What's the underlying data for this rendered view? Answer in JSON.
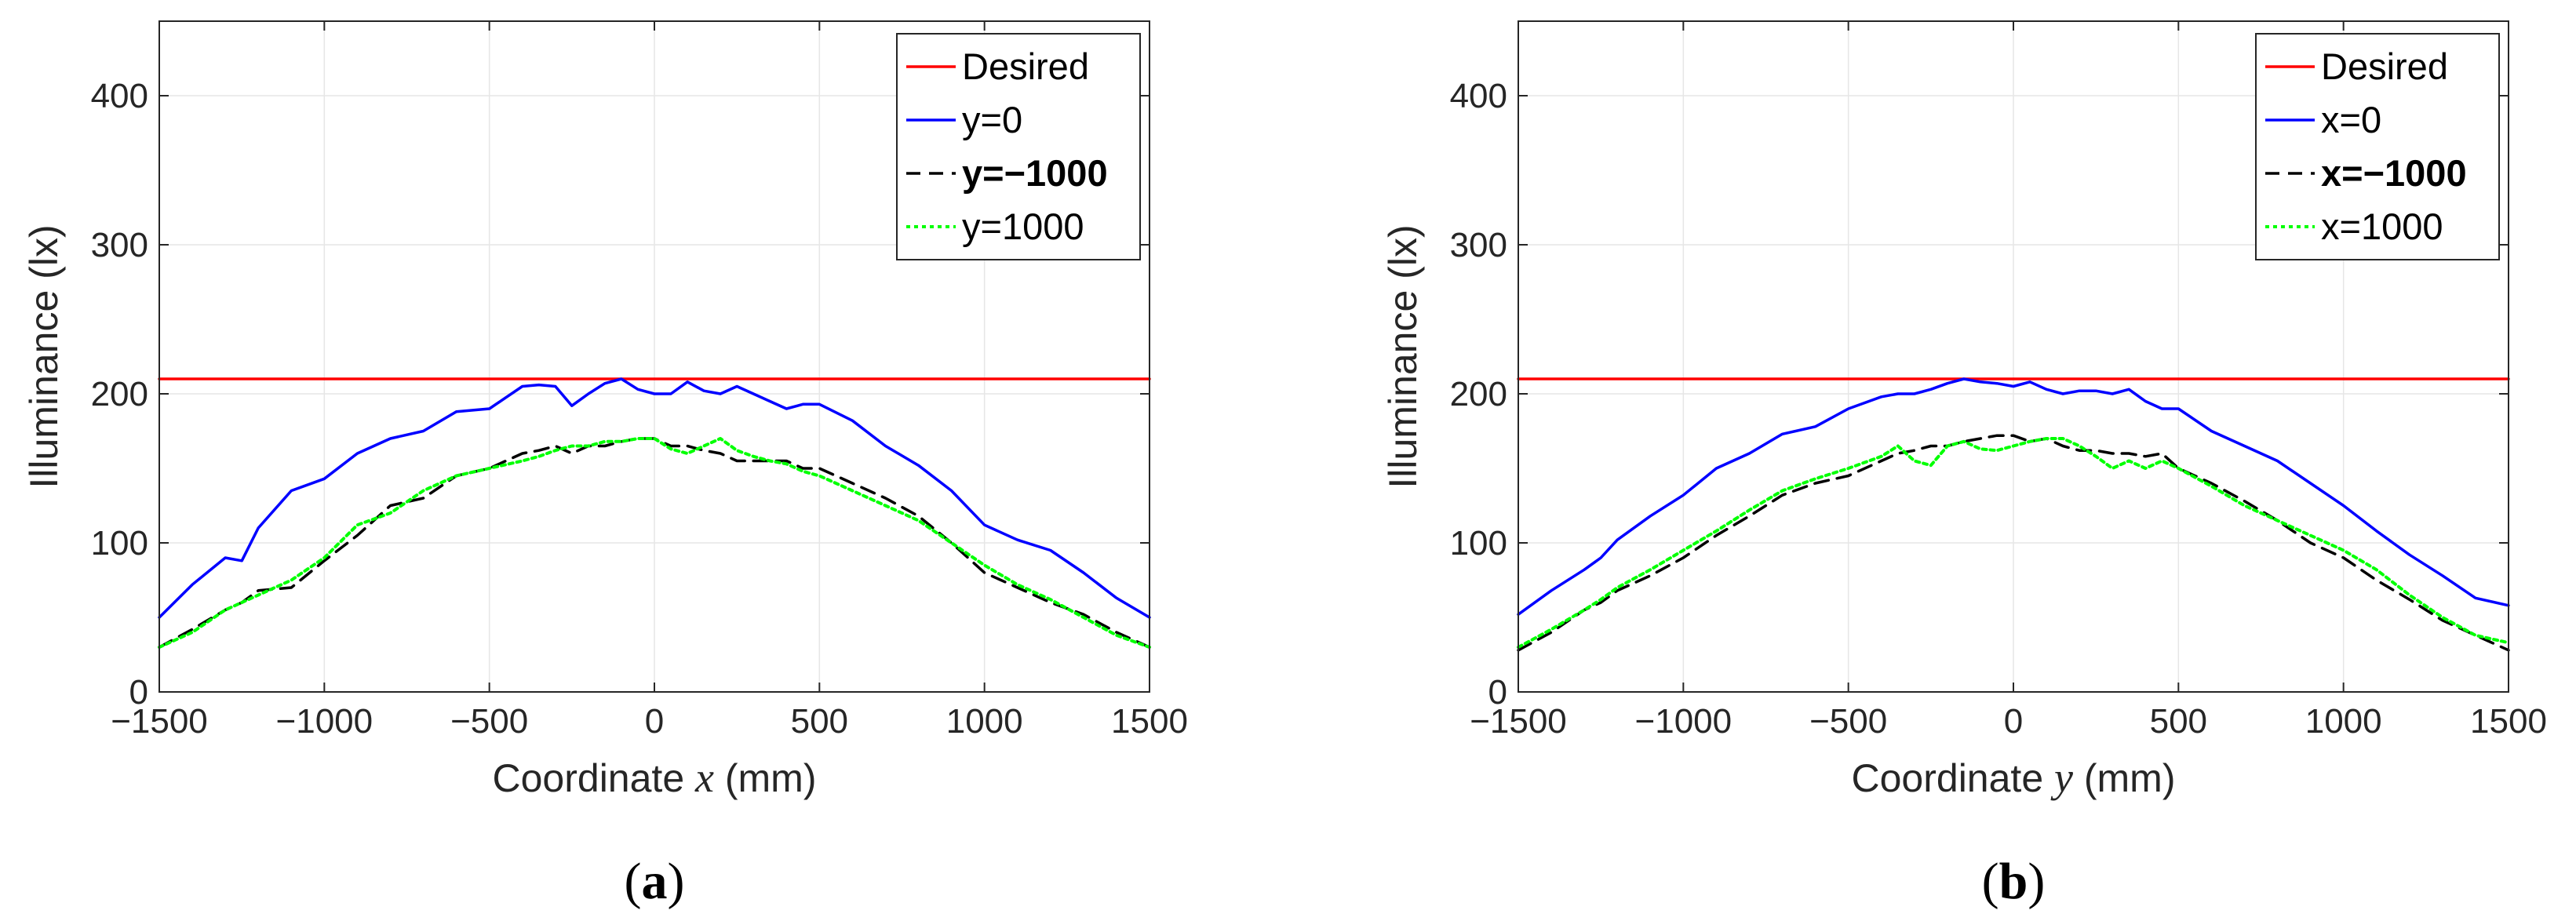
{
  "chart_data": [
    {
      "type": "line",
      "panel_label": "a",
      "xlabel_prefix": "Coordinate",
      "xlabel_var": "x",
      "xlabel_unit": "(mm)",
      "ylabel": "Illuminance (lx)",
      "xlim": [
        -1500,
        1500
      ],
      "ylim": [
        0,
        450
      ],
      "xticks": [
        -1500,
        -1000,
        -500,
        0,
        500,
        1000,
        1500
      ],
      "xtick_labels": [
        "−1500",
        "−1000",
        "−500",
        "0",
        "500",
        "1000",
        "1500"
      ],
      "yticks": [
        0,
        100,
        200,
        300,
        400
      ],
      "ytick_labels": [
        "0",
        "100",
        "200",
        "300",
        "400"
      ],
      "grid": true,
      "legend_position": "top-right",
      "x": [
        -1500,
        -1400,
        -1300,
        -1250,
        -1200,
        -1100,
        -1000,
        -900,
        -800,
        -700,
        -600,
        -500,
        -400,
        -350,
        -300,
        -250,
        -200,
        -150,
        -100,
        -50,
        0,
        50,
        100,
        150,
        200,
        250,
        300,
        350,
        400,
        450,
        500,
        600,
        700,
        800,
        900,
        1000,
        1100,
        1200,
        1300,
        1400,
        1500
      ],
      "series": [
        {
          "name": "Desired",
          "color": "#ff0000",
          "style": "solid",
          "bold_label": false,
          "values": [
            210,
            210,
            210,
            210,
            210,
            210,
            210,
            210,
            210,
            210,
            210,
            210,
            210,
            210,
            210,
            210,
            210,
            210,
            210,
            210,
            210,
            210,
            210,
            210,
            210,
            210,
            210,
            210,
            210,
            210,
            210,
            210,
            210,
            210,
            210,
            210,
            210,
            210,
            210,
            210,
            210
          ]
        },
        {
          "name": "y=0",
          "color": "#0000ff",
          "style": "solid",
          "bold_label": false,
          "values": [
            50,
            72,
            90,
            88,
            110,
            135,
            143,
            160,
            170,
            175,
            188,
            190,
            205,
            206,
            205,
            192,
            200,
            207,
            210,
            203,
            200,
            200,
            208,
            202,
            200,
            205,
            200,
            195,
            190,
            193,
            193,
            182,
            165,
            152,
            135,
            112,
            102,
            95,
            80,
            63,
            50
          ]
        },
        {
          "name": "y=−1000",
          "color": "#000000",
          "style": "dashed",
          "bold_label": true,
          "values": [
            30,
            42,
            55,
            60,
            68,
            70,
            88,
            105,
            125,
            130,
            145,
            150,
            160,
            162,
            165,
            160,
            165,
            165,
            168,
            170,
            170,
            165,
            165,
            162,
            160,
            155,
            155,
            155,
            155,
            150,
            150,
            140,
            130,
            118,
            100,
            80,
            70,
            60,
            52,
            40,
            30
          ]
        },
        {
          "name": "y=1000",
          "color": "#00ff00",
          "style": "dotted",
          "bold_label": false,
          "values": [
            30,
            40,
            55,
            60,
            65,
            75,
            90,
            112,
            120,
            135,
            145,
            150,
            155,
            158,
            162,
            165,
            165,
            168,
            168,
            170,
            170,
            163,
            160,
            165,
            170,
            162,
            158,
            155,
            153,
            148,
            145,
            135,
            125,
            115,
            100,
            85,
            72,
            62,
            50,
            38,
            30
          ]
        }
      ]
    },
    {
      "type": "line",
      "panel_label": "b",
      "xlabel_prefix": "Coordinate",
      "xlabel_var": "y",
      "xlabel_unit": "(mm)",
      "ylabel": "Illuminance (lx)",
      "xlim": [
        -1500,
        1500
      ],
      "ylim": [
        0,
        450
      ],
      "xticks": [
        -1500,
        -1000,
        -500,
        0,
        500,
        1000,
        1500
      ],
      "xtick_labels": [
        "−1500",
        "−1000",
        "−500",
        "0",
        "500",
        "1000",
        "1500"
      ],
      "yticks": [
        0,
        100,
        200,
        300,
        400
      ],
      "ytick_labels": [
        "0",
        "100",
        "200",
        "300",
        "400"
      ],
      "grid": true,
      "legend_position": "top-right",
      "x": [
        -1500,
        -1400,
        -1300,
        -1250,
        -1200,
        -1100,
        -1000,
        -900,
        -800,
        -700,
        -600,
        -500,
        -400,
        -350,
        -300,
        -250,
        -200,
        -150,
        -100,
        -50,
        0,
        50,
        100,
        150,
        200,
        250,
        300,
        350,
        400,
        450,
        500,
        600,
        700,
        800,
        900,
        1000,
        1100,
        1200,
        1300,
        1400,
        1500
      ],
      "series": [
        {
          "name": "Desired",
          "color": "#ff0000",
          "style": "solid",
          "bold_label": false,
          "values": [
            210,
            210,
            210,
            210,
            210,
            210,
            210,
            210,
            210,
            210,
            210,
            210,
            210,
            210,
            210,
            210,
            210,
            210,
            210,
            210,
            210,
            210,
            210,
            210,
            210,
            210,
            210,
            210,
            210,
            210,
            210,
            210,
            210,
            210,
            210,
            210,
            210,
            210,
            210,
            210,
            210
          ]
        },
        {
          "name": "x=0",
          "color": "#0000ff",
          "style": "solid",
          "bold_label": false,
          "values": [
            52,
            68,
            82,
            90,
            102,
            118,
            132,
            150,
            160,
            173,
            178,
            190,
            198,
            200,
            200,
            203,
            207,
            210,
            208,
            207,
            205,
            208,
            203,
            200,
            202,
            202,
            200,
            203,
            195,
            190,
            190,
            175,
            165,
            155,
            140,
            125,
            108,
            92,
            78,
            63,
            58
          ]
        },
        {
          "name": "x=−1000",
          "color": "#000000",
          "style": "dashed",
          "bold_label": true,
          "values": [
            28,
            40,
            55,
            60,
            68,
            78,
            90,
            105,
            118,
            132,
            140,
            145,
            155,
            160,
            162,
            165,
            165,
            168,
            170,
            172,
            172,
            168,
            170,
            165,
            162,
            162,
            160,
            160,
            158,
            160,
            150,
            140,
            128,
            115,
            100,
            90,
            75,
            62,
            48,
            38,
            28
          ]
        },
        {
          "name": "x=1000",
          "color": "#00ff00",
          "style": "dotted",
          "bold_label": false,
          "values": [
            30,
            42,
            55,
            62,
            70,
            82,
            95,
            108,
            122,
            135,
            143,
            150,
            158,
            165,
            155,
            152,
            165,
            168,
            163,
            162,
            165,
            168,
            170,
            170,
            165,
            158,
            150,
            155,
            150,
            155,
            150,
            138,
            125,
            115,
            105,
            95,
            82,
            65,
            50,
            38,
            33
          ]
        }
      ]
    }
  ]
}
